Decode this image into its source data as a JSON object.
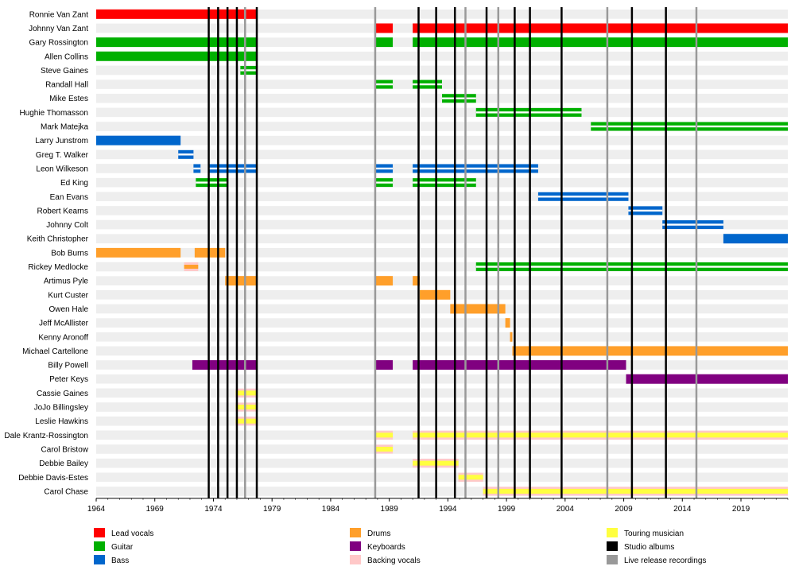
{
  "chart_data": {
    "type": "timeline",
    "title": "",
    "x_axis": {
      "min": 1964,
      "max": 2023,
      "ticks": [
        1964,
        1969,
        1974,
        1979,
        1984,
        1989,
        1994,
        1999,
        2004,
        2009,
        2014,
        2019
      ]
    },
    "colors": {
      "lead_vocals": "#ff0000",
      "guitar": "#00b000",
      "bass": "#0066cc",
      "drums": "#ff9f2a",
      "keyboards": "#800080",
      "backing_vocals": "#ffc8c8",
      "touring": "#ffff40",
      "studio_album": "#000000",
      "live_release": "#999999",
      "row_stripe": "#eeeeee"
    },
    "legend": [
      {
        "key": "lead_vocals",
        "label": "Lead vocals",
        "column": 0,
        "row": 0
      },
      {
        "key": "guitar",
        "label": "Guitar",
        "column": 0,
        "row": 1
      },
      {
        "key": "bass",
        "label": "Bass",
        "column": 0,
        "row": 2
      },
      {
        "key": "drums",
        "label": "Drums",
        "column": 1,
        "row": 0
      },
      {
        "key": "keyboards",
        "label": "Keyboards",
        "column": 1,
        "row": 1
      },
      {
        "key": "backing_vocals",
        "label": "Backing vocals",
        "column": 1,
        "row": 2
      },
      {
        "key": "touring",
        "label": "Touring musician",
        "column": 2,
        "row": 0
      },
      {
        "key": "studio_album",
        "label": "Studio albums",
        "column": 2,
        "row": 1
      },
      {
        "key": "live_release",
        "label": "Live release recordings",
        "column": 2,
        "row": 2
      }
    ],
    "studio_albums": [
      1973.6,
      1974.4,
      1975.2,
      1976.0,
      1977.7,
      1991.5,
      1993.0,
      1994.6,
      1997.3,
      1999.7,
      2001.0,
      2003.7,
      2009.7,
      2012.6
    ],
    "live_releases": [
      1976.7,
      1987.8,
      1995.5,
      1998.3,
      2007.6,
      2015.2
    ],
    "members": [
      {
        "name": "Ronnie Van Zant",
        "bars": [
          {
            "start": 1964.0,
            "end": 1977.7,
            "role": "lead_vocals"
          }
        ]
      },
      {
        "name": "Johnny Van Zant",
        "bars": [
          {
            "start": 1987.8,
            "end": 1989.3,
            "role": "lead_vocals"
          },
          {
            "start": 1991.0,
            "end": 2023.0,
            "role": "lead_vocals"
          }
        ]
      },
      {
        "name": "Gary Rossington",
        "bars": [
          {
            "start": 1964.0,
            "end": 1977.7,
            "role": "guitar"
          },
          {
            "start": 1987.8,
            "end": 1989.3,
            "role": "guitar"
          },
          {
            "start": 1991.0,
            "end": 2023.0,
            "role": "guitar"
          }
        ]
      },
      {
        "name": "Allen Collins",
        "bars": [
          {
            "start": 1964.0,
            "end": 1977.7,
            "role": "guitar"
          }
        ]
      },
      {
        "name": "Steve Gaines",
        "bars": [
          {
            "start": 1976.3,
            "end": 1977.7,
            "role": "guitar",
            "touring": true
          }
        ]
      },
      {
        "name": "Randall Hall",
        "bars": [
          {
            "start": 1987.8,
            "end": 1989.3,
            "role": "guitar",
            "touring": true
          },
          {
            "start": 1991.0,
            "end": 1993.5,
            "role": "guitar",
            "touring": true
          }
        ]
      },
      {
        "name": "Mike Estes",
        "bars": [
          {
            "start": 1993.5,
            "end": 1996.4,
            "role": "guitar",
            "touring": true
          }
        ]
      },
      {
        "name": "Hughie Thomasson",
        "bars": [
          {
            "start": 1996.4,
            "end": 2005.4,
            "role": "guitar",
            "touring": true
          }
        ]
      },
      {
        "name": "Mark Matejka",
        "bars": [
          {
            "start": 2006.2,
            "end": 2023.0,
            "role": "guitar",
            "touring": true
          }
        ]
      },
      {
        "name": "Larry Junstrom",
        "bars": [
          {
            "start": 1964.0,
            "end": 1971.2,
            "role": "bass"
          }
        ]
      },
      {
        "name": "Greg T. Walker",
        "bars": [
          {
            "start": 1971.0,
            "end": 1972.3,
            "role": "bass",
            "touring": true
          }
        ]
      },
      {
        "name": "Leon Wilkeson",
        "bars": [
          {
            "start": 1972.3,
            "end": 1972.9,
            "role": "bass",
            "touring": true
          },
          {
            "start": 1973.6,
            "end": 1977.7,
            "role": "bass",
            "touring": true
          },
          {
            "start": 1987.8,
            "end": 1989.3,
            "role": "bass",
            "touring": true
          },
          {
            "start": 1991.0,
            "end": 2001.7,
            "role": "bass",
            "touring": true
          }
        ]
      },
      {
        "name": "Ed King",
        "bars": [
          {
            "start": 1972.5,
            "end": 1975.2,
            "role": "guitar",
            "touring": true
          },
          {
            "start": 1987.8,
            "end": 1989.3,
            "role": "guitar",
            "touring": true
          },
          {
            "start": 1991.0,
            "end": 1996.4,
            "role": "guitar",
            "touring": true
          }
        ]
      },
      {
        "name": "Ean Evans",
        "bars": [
          {
            "start": 2001.7,
            "end": 2009.4,
            "role": "bass",
            "touring": true
          }
        ]
      },
      {
        "name": "Robert Kearns",
        "bars": [
          {
            "start": 2009.4,
            "end": 2012.3,
            "role": "bass",
            "touring": true
          }
        ]
      },
      {
        "name": "Johnny Colt",
        "bars": [
          {
            "start": 2012.3,
            "end": 2017.5,
            "role": "bass",
            "touring": true
          }
        ]
      },
      {
        "name": "Keith Christopher",
        "bars": [
          {
            "start": 2017.5,
            "end": 2023.0,
            "role": "bass"
          }
        ]
      },
      {
        "name": "Bob Burns",
        "bars": [
          {
            "start": 1964.0,
            "end": 1971.2,
            "role": "drums"
          },
          {
            "start": 1972.4,
            "end": 1975.0,
            "role": "drums"
          }
        ]
      },
      {
        "name": "Rickey Medlocke",
        "bars": [
          {
            "start": 1971.5,
            "end": 1972.7,
            "role": "drums",
            "touring": "backing"
          },
          {
            "start": 1996.4,
            "end": 2023.0,
            "role": "guitar",
            "touring": true
          }
        ]
      },
      {
        "name": "Artimus Pyle",
        "bars": [
          {
            "start": 1975.0,
            "end": 1977.7,
            "role": "drums"
          },
          {
            "start": 1987.8,
            "end": 1989.3,
            "role": "drums"
          },
          {
            "start": 1991.0,
            "end": 1991.6,
            "role": "drums"
          }
        ]
      },
      {
        "name": "Kurt Custer",
        "bars": [
          {
            "start": 1991.6,
            "end": 1994.2,
            "role": "drums"
          }
        ]
      },
      {
        "name": "Owen Hale",
        "bars": [
          {
            "start": 1994.2,
            "end": 1998.9,
            "role": "drums"
          }
        ]
      },
      {
        "name": "Jeff McAllister",
        "bars": [
          {
            "start": 1998.9,
            "end": 1999.3,
            "role": "drums"
          }
        ]
      },
      {
        "name": "Kenny Aronoff",
        "bars": [
          {
            "start": 1999.3,
            "end": 1999.5,
            "role": "drums"
          }
        ]
      },
      {
        "name": "Michael Cartellone",
        "bars": [
          {
            "start": 1999.5,
            "end": 2023.0,
            "role": "drums"
          }
        ]
      },
      {
        "name": "Billy Powell",
        "bars": [
          {
            "start": 1972.2,
            "end": 1977.7,
            "role": "keyboards"
          },
          {
            "start": 1987.8,
            "end": 1989.3,
            "role": "keyboards"
          },
          {
            "start": 1991.0,
            "end": 2009.2,
            "role": "keyboards"
          }
        ]
      },
      {
        "name": "Peter Keys",
        "bars": [
          {
            "start": 2009.2,
            "end": 2023.0,
            "role": "keyboards"
          }
        ]
      },
      {
        "name": "Cassie Gaines",
        "bars": [
          {
            "start": 1975.9,
            "end": 1977.7,
            "role": "backing_vocals",
            "touring": true
          }
        ]
      },
      {
        "name": "JoJo Billingsley",
        "bars": [
          {
            "start": 1975.9,
            "end": 1977.7,
            "role": "backing_vocals",
            "touring": true
          }
        ]
      },
      {
        "name": "Leslie Hawkins",
        "bars": [
          {
            "start": 1975.9,
            "end": 1977.7,
            "role": "backing_vocals",
            "touring": true
          }
        ]
      },
      {
        "name": "Dale Krantz-Rossington",
        "bars": [
          {
            "start": 1987.8,
            "end": 1989.3,
            "role": "backing_vocals",
            "touring": true
          },
          {
            "start": 1991.0,
            "end": 2023.0,
            "role": "backing_vocals",
            "touring": true
          }
        ]
      },
      {
        "name": "Carol Bristow",
        "bars": [
          {
            "start": 1987.8,
            "end": 1989.3,
            "role": "backing_vocals",
            "touring": true
          }
        ]
      },
      {
        "name": "Debbie Bailey",
        "bars": [
          {
            "start": 1991.0,
            "end": 1994.9,
            "role": "backing_vocals",
            "touring": true
          }
        ]
      },
      {
        "name": "Debbie Davis-Estes",
        "bars": [
          {
            "start": 1994.9,
            "end": 1997.0,
            "role": "backing_vocals",
            "touring": true
          }
        ]
      },
      {
        "name": "Carol Chase",
        "bars": [
          {
            "start": 1997.0,
            "end": 2023.0,
            "role": "backing_vocals",
            "touring": true
          }
        ]
      }
    ]
  }
}
